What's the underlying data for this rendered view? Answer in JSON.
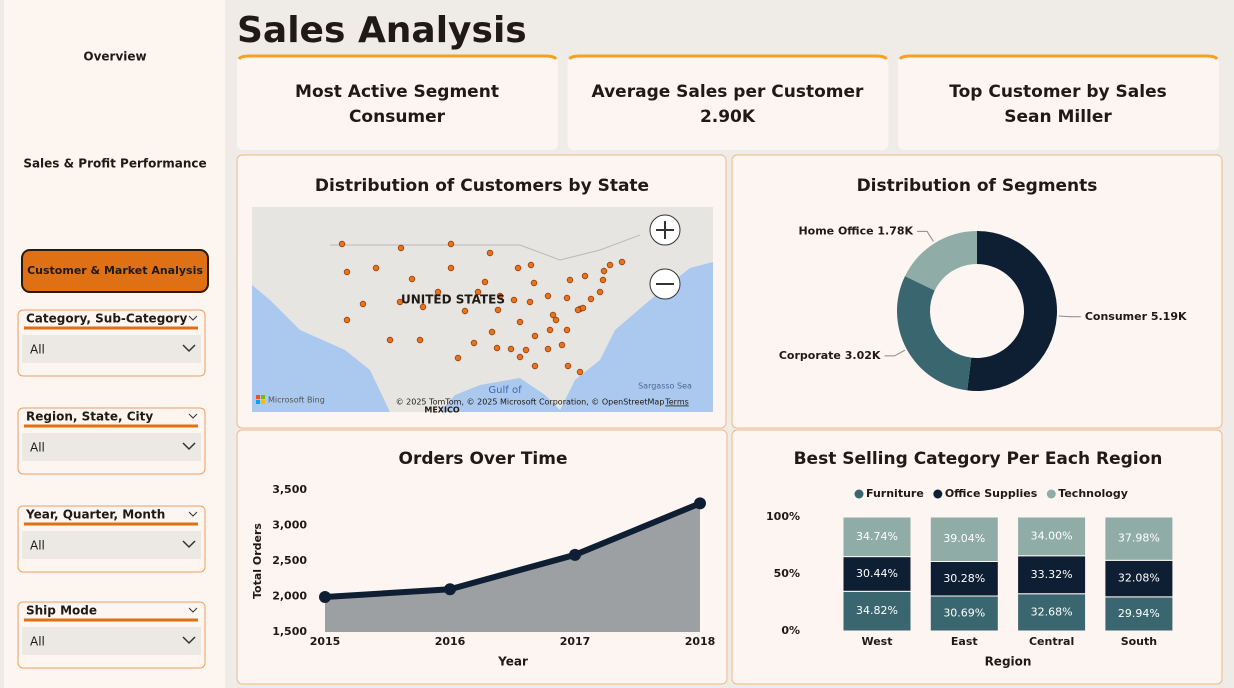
{
  "title": "Sales Analysis",
  "nav": [
    "Overview",
    "Sales & Profit Performance",
    "Customer & Market Analysis"
  ],
  "filters": [
    {
      "label": "Category, Sub-Category",
      "value": "All"
    },
    {
      "label": "Region, State, City",
      "value": "All"
    },
    {
      "label": "Year, Quarter, Month",
      "value": "All"
    },
    {
      "label": "Ship Mode",
      "value": "All"
    }
  ],
  "kpis": [
    {
      "label": "Most Active Segment",
      "value": "Consumer"
    },
    {
      "label": "Average Sales per Customer",
      "value": "2.90K"
    },
    {
      "label": "Top Customer by Sales",
      "value": "Sean Miller"
    }
  ],
  "map": {
    "title": "Distribution of Customers by State",
    "country": "UNITED STATES",
    "gulf": "Gulf of",
    "mexico": "MEXICO",
    "sea": "Sargasso Sea",
    "logo": "Microsoft Bing",
    "attribution": "© 2025 TomTom, © 2025 Microsoft Corporation, © OpenStreetMap",
    "terms": "Terms"
  },
  "chart_data": [
    {
      "type": "donut",
      "title": "Distribution of Segments",
      "categories": [
        "Consumer",
        "Corporate",
        "Home Office"
      ],
      "values": [
        5190,
        3020,
        1780
      ],
      "value_labels": [
        "5.19K",
        "3.02K",
        "1.78K"
      ],
      "colors": [
        "#0f1f33",
        "#3a6670",
        "#8fada6"
      ]
    },
    {
      "type": "area",
      "title": "Orders Over Time",
      "x_label": "Year",
      "y_label": "Total Orders",
      "x": [
        2015,
        2016,
        2017,
        2018
      ],
      "values": [
        1993,
        2102,
        2587,
        3312
      ],
      "xlim": [
        2015,
        2018
      ],
      "xticks": [
        2015,
        2016,
        2017,
        2018
      ],
      "ylim": [
        1500,
        3500
      ],
      "yticks": [
        {
          "value": 1500,
          "label": "1,500"
        },
        {
          "value": 2000,
          "label": "2,000"
        },
        {
          "value": 2500,
          "label": "2,500"
        },
        {
          "value": 3000,
          "label": "3,000"
        },
        {
          "value": 3500,
          "label": "3,500"
        }
      ],
      "color": "#0f1f33",
      "fill": "#9da0a3"
    },
    {
      "type": "bar",
      "stacked": true,
      "title": "Best Selling Category Per Each Region",
      "x_label": "Region",
      "categories": [
        "West",
        "East",
        "Central",
        "South"
      ],
      "series": [
        {
          "name": "Furniture",
          "color": "#3a6670",
          "values": [
            34.82,
            30.69,
            32.68,
            29.94
          ],
          "value_labels": [
            "34.82%",
            "30.69%",
            "32.68%",
            "29.94%"
          ]
        },
        {
          "name": "Office Supplies",
          "color": "#0f1f33",
          "values": [
            30.44,
            30.28,
            33.32,
            32.08
          ],
          "value_labels": [
            "30.44%",
            "30.28%",
            "33.32%",
            "32.08%"
          ]
        },
        {
          "name": "Technology",
          "color": "#8fada6",
          "values": [
            34.74,
            39.04,
            34.0,
            37.98
          ],
          "value_labels": [
            "34.74%",
            "39.04%",
            "34.00%",
            "37.98%"
          ]
        }
      ],
      "ylim": [
        0,
        100
      ],
      "yticks": [
        {
          "value": 0,
          "label": "0%"
        },
        {
          "value": 50,
          "label": "50%"
        },
        {
          "value": 100,
          "label": "100%"
        }
      ]
    }
  ]
}
